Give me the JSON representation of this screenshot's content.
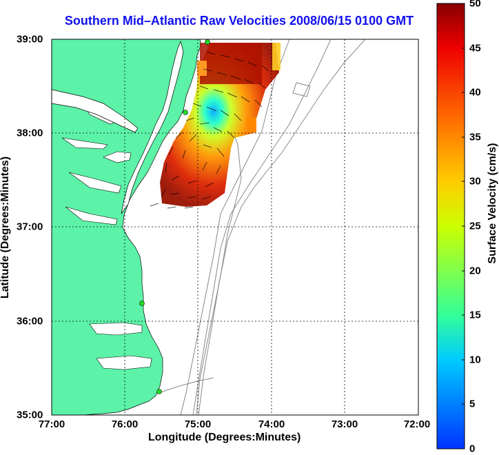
{
  "title": "Southern Mid–Atlantic Raw Velocities 2008/06/15 0100 GMT",
  "xlabel": "Longitude (Degrees:Minutes)",
  "ylabel": "Latitude (Degrees:Minutes)",
  "x_ticks": [
    "77:00",
    "76:00",
    "75:00",
    "74:00",
    "73:00",
    "72:00"
  ],
  "y_ticks": [
    "39:00",
    "38:00",
    "37:00",
    "36:00",
    "35:00"
  ],
  "colorbar": {
    "label": "Surface Velocity (cm/s)",
    "ticks": [
      "50",
      "45",
      "40",
      "35",
      "30",
      "25",
      "20",
      "15",
      "10",
      "5",
      "0"
    ],
    "range": [
      0,
      50
    ]
  },
  "colors": {
    "title": "#1010ee",
    "land": "#5cf2a8",
    "coast_contour": "#888888",
    "station_marker": "#22dd22"
  }
}
